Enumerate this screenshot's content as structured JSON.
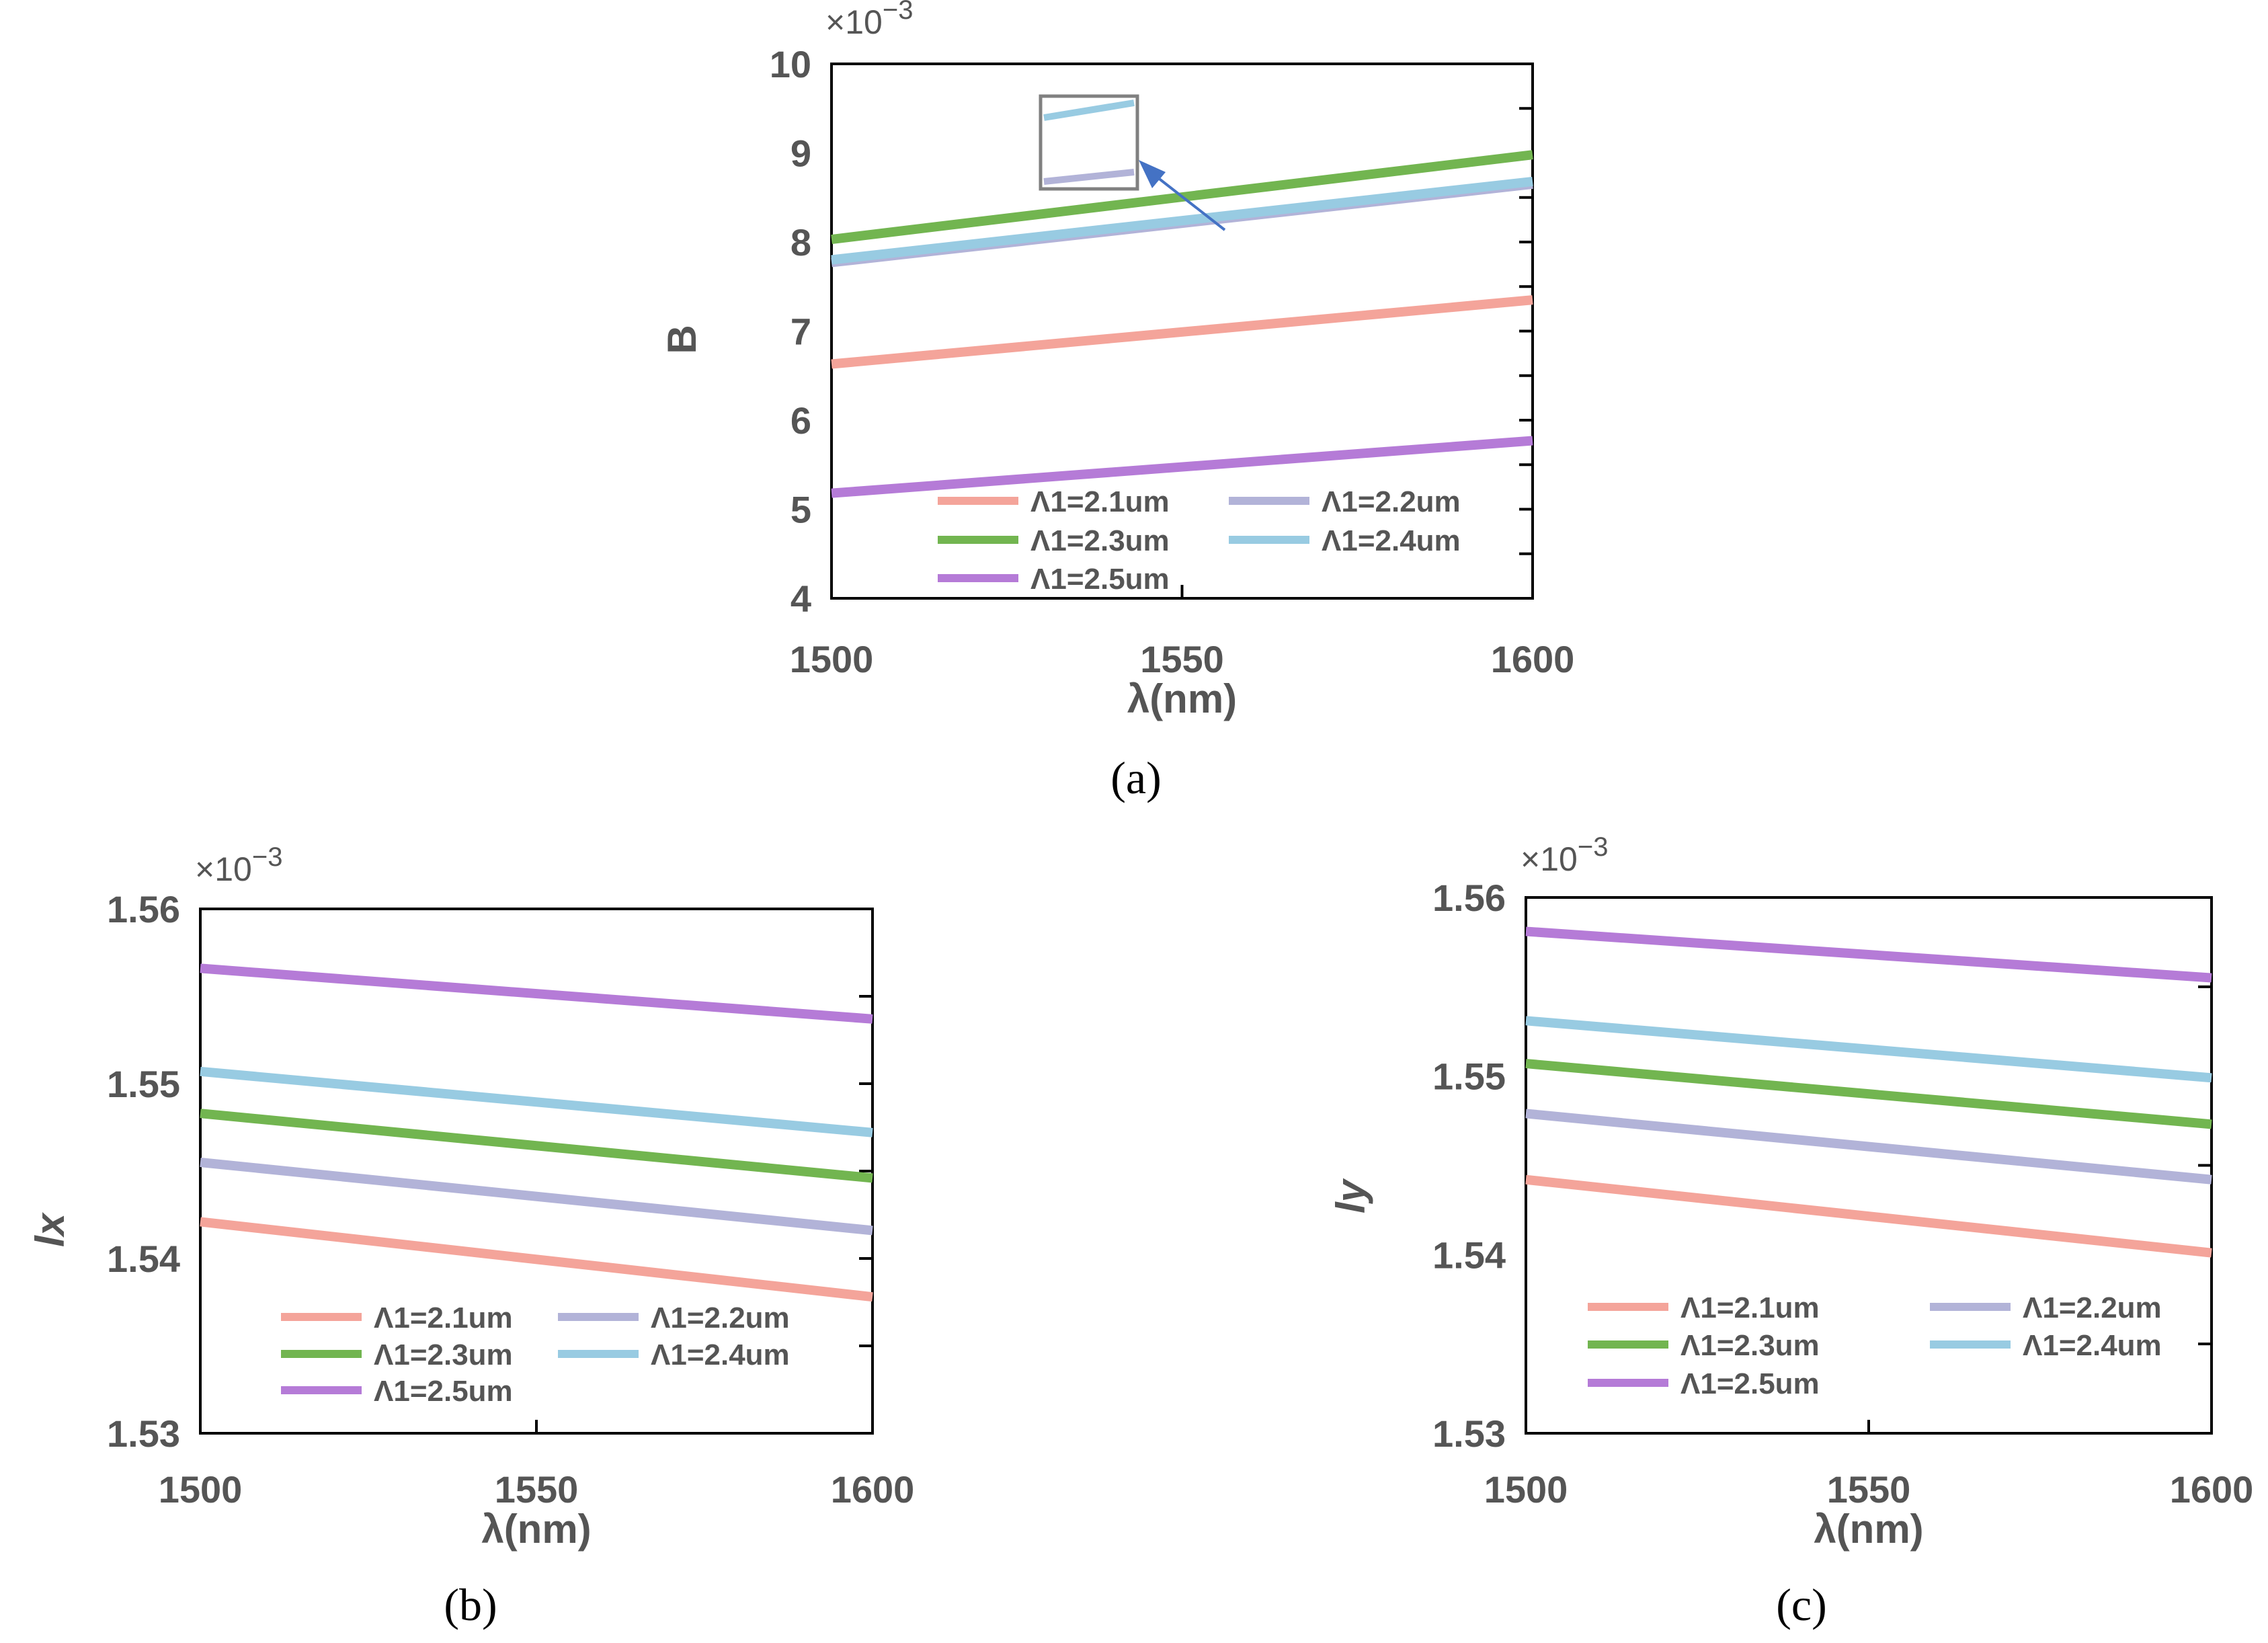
{
  "chart_data": [
    {
      "type": "line",
      "panel": "a",
      "caption": "(a)",
      "xlabel": "λ(nm)",
      "ylabel": "B",
      "y_multiplier": "×10",
      "y_exponent": "−3",
      "xlim": [
        1500,
        1600
      ],
      "ylim": [
        4,
        10
      ],
      "xticks": [
        "1500",
        "1550",
        "1600"
      ],
      "yticks": [
        "4",
        "5",
        "6",
        "7",
        "8",
        "9",
        "10"
      ],
      "x": [
        1500,
        1600
      ],
      "series": [
        {
          "name": "Λ1=2.1um",
          "color": "#f4a49a",
          "values": [
            6.63,
            7.35
          ]
        },
        {
          "name": "Λ1=2.2um",
          "color": "#b2b3d8",
          "values": [
            7.77,
            8.65
          ]
        },
        {
          "name": "Λ1=2.3um",
          "color": "#72b550",
          "values": [
            8.03,
            8.98
          ]
        },
        {
          "name": "Λ1=2.4um",
          "color": "#98cbe2",
          "values": [
            7.8,
            8.68
          ]
        },
        {
          "name": "Λ1=2.5um",
          "color": "#b57bd7",
          "values": [
            5.18,
            5.77
          ]
        }
      ],
      "inset": {
        "description": "zoomed region showing Λ1=2.2um and Λ1=2.4um separation",
        "series": [
          "Λ1=2.4um",
          "Λ1=2.2um"
        ]
      },
      "legend_position": "bottom"
    },
    {
      "type": "line",
      "panel": "b",
      "caption": "(b)",
      "xlabel": "λ(nm)",
      "ylabel": "lx",
      "y_multiplier": "×10",
      "y_exponent": "−3",
      "xlim": [
        1500,
        1600
      ],
      "ylim": [
        1.53,
        1.56
      ],
      "xticks": [
        "1500",
        "1550",
        "1600"
      ],
      "yticks": [
        "1.53",
        "1.54",
        "1.55",
        "1.56"
      ],
      "x": [
        1500,
        1600
      ],
      "series": [
        {
          "name": "Λ1=2.1um",
          "color": "#f4a49a",
          "values": [
            1.5421,
            1.5378
          ]
        },
        {
          "name": "Λ1=2.2um",
          "color": "#b2b3d8",
          "values": [
            1.5455,
            1.5416
          ]
        },
        {
          "name": "Λ1=2.3um",
          "color": "#72b550",
          "values": [
            1.5483,
            1.5446
          ]
        },
        {
          "name": "Λ1=2.4um",
          "color": "#98cbe2",
          "values": [
            1.5507,
            1.5472
          ]
        },
        {
          "name": "Λ1=2.5um",
          "color": "#b57bd7",
          "values": [
            1.5566,
            1.5537
          ]
        }
      ],
      "legend_position": "bottom"
    },
    {
      "type": "line",
      "panel": "c",
      "caption": "(c)",
      "xlabel": "λ(nm)",
      "ylabel": "ly",
      "y_multiplier": "×10",
      "y_exponent": "−3",
      "xlim": [
        1500,
        1600
      ],
      "ylim": [
        1.53,
        1.56
      ],
      "xticks": [
        "1500",
        "1550",
        "1600"
      ],
      "yticks": [
        "1.53",
        "1.54",
        "1.55",
        "1.56"
      ],
      "x": [
        1500,
        1600
      ],
      "series": [
        {
          "name": "Λ1=2.1um",
          "color": "#f4a49a",
          "values": [
            1.5442,
            1.5401
          ]
        },
        {
          "name": "Λ1=2.2um",
          "color": "#b2b3d8",
          "values": [
            1.5479,
            1.5442
          ]
        },
        {
          "name": "Λ1=2.3um",
          "color": "#72b550",
          "values": [
            1.5507,
            1.5473
          ]
        },
        {
          "name": "Λ1=2.4um",
          "color": "#98cbe2",
          "values": [
            1.5531,
            1.5499
          ]
        },
        {
          "name": "Λ1=2.5um",
          "color": "#b57bd7",
          "values": [
            1.5581,
            1.5555
          ]
        }
      ],
      "legend_position": "bottom"
    }
  ]
}
